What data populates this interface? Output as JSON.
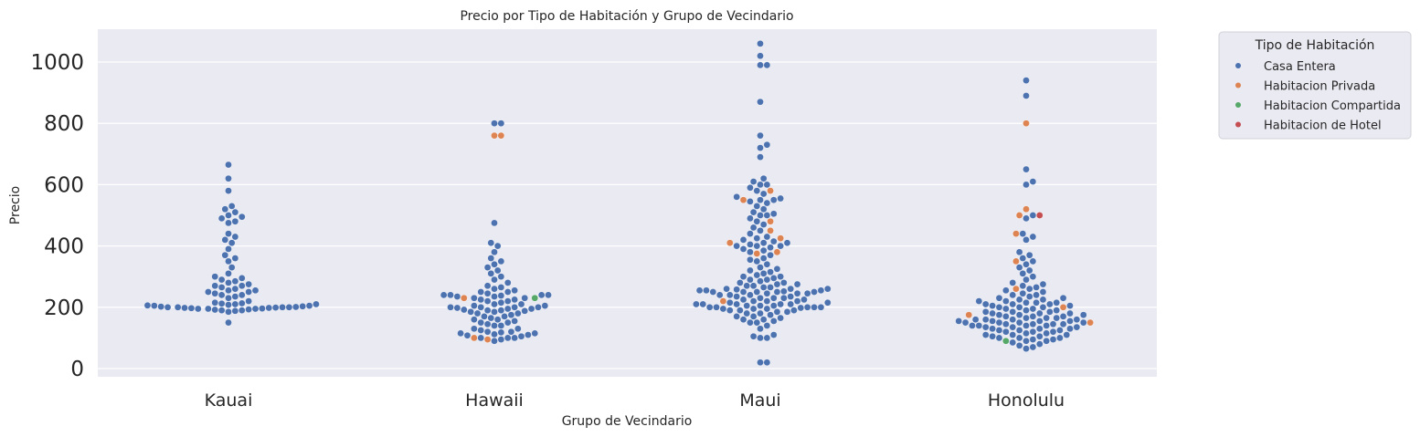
{
  "chart_data": {
    "type": "scatter",
    "subtype": "swarm",
    "title": "Precio por Tipo de Habitación y Grupo de Vecindario",
    "xlabel": "Grupo de Vecindario",
    "ylabel": "Precio",
    "ylim": [
      -30,
      1110
    ],
    "yticks": [
      0,
      200,
      400,
      600,
      800,
      1000
    ],
    "grid": true,
    "legend": {
      "title": "Tipo de Habitación",
      "placement": "outside-top-right",
      "entries": [
        {
          "name": "Casa Entera",
          "color": "#4c72b0"
        },
        {
          "name": "Habitacion Privada",
          "color": "#dd8452"
        },
        {
          "name": "Habitacion Compartida",
          "color": "#55a868"
        },
        {
          "name": "Habitacion de Hotel",
          "color": "#c44e52"
        }
      ]
    },
    "categories": [
      "Kauai",
      "Hawaii",
      "Maui",
      "Honolulu"
    ],
    "series": [
      {
        "name": "Casa Entera",
        "color": "#4c72b0",
        "points": {
          "Kauai": [
            150,
            185,
            188,
            190,
            190,
            192,
            193,
            195,
            195,
            195,
            196,
            197,
            198,
            198,
            199,
            200,
            200,
            200,
            200,
            201,
            202,
            203,
            205,
            205,
            206,
            208,
            210,
            210,
            212,
            213,
            215,
            220,
            230,
            235,
            240,
            240,
            245,
            250,
            250,
            255,
            255,
            260,
            265,
            270,
            270,
            275,
            280,
            285,
            290,
            295,
            300,
            310,
            330,
            350,
            360,
            370,
            390,
            410,
            420,
            430,
            440,
            475,
            480,
            490,
            495,
            500,
            510,
            520,
            530,
            580,
            620,
            665
          ],
          "Hawaii": [
            90,
            95,
            100,
            100,
            100,
            105,
            108,
            110,
            112,
            115,
            115,
            118,
            120,
            120,
            125,
            130,
            130,
            140,
            140,
            145,
            150,
            150,
            155,
            160,
            160,
            165,
            170,
            170,
            175,
            180,
            180,
            185,
            185,
            188,
            190,
            190,
            192,
            195,
            195,
            198,
            200,
            200,
            200,
            200,
            205,
            205,
            210,
            210,
            215,
            220,
            220,
            225,
            225,
            230,
            230,
            235,
            235,
            238,
            240,
            240,
            240,
            240,
            245,
            250,
            250,
            255,
            260,
            265,
            270,
            280,
            290,
            300,
            310,
            320,
            330,
            340,
            350,
            360,
            380,
            400,
            410,
            475,
            800,
            800
          ],
          "Maui": [
            20,
            20,
            100,
            100,
            105,
            110,
            130,
            140,
            150,
            150,
            155,
            160,
            160,
            165,
            170,
            170,
            175,
            180,
            180,
            185,
            185,
            190,
            190,
            190,
            195,
            195,
            195,
            198,
            200,
            200,
            200,
            200,
            200,
            205,
            205,
            205,
            210,
            210,
            210,
            210,
            210,
            215,
            215,
            220,
            220,
            220,
            225,
            225,
            230,
            230,
            230,
            235,
            235,
            240,
            240,
            240,
            245,
            245,
            245,
            250,
            250,
            250,
            250,
            250,
            252,
            255,
            255,
            255,
            258,
            260,
            260,
            260,
            265,
            265,
            270,
            270,
            275,
            275,
            280,
            280,
            285,
            290,
            290,
            295,
            300,
            300,
            305,
            310,
            315,
            320,
            325,
            330,
            340,
            350,
            355,
            360,
            370,
            380,
            385,
            390,
            395,
            400,
            400,
            400,
            405,
            410,
            410,
            415,
            420,
            425,
            430,
            440,
            450,
            460,
            470,
            480,
            490,
            500,
            500,
            505,
            510,
            520,
            530,
            540,
            545,
            550,
            550,
            555,
            560,
            570,
            580,
            590,
            600,
            600,
            610,
            620,
            690,
            720,
            730,
            760,
            870,
            990,
            990,
            1020,
            1060
          ],
          "Honolulu": [
            65,
            70,
            75,
            80,
            85,
            90,
            90,
            95,
            95,
            100,
            100,
            100,
            105,
            105,
            110,
            110,
            110,
            115,
            115,
            120,
            120,
            120,
            125,
            125,
            125,
            130,
            130,
            130,
            135,
            135,
            135,
            140,
            140,
            140,
            140,
            145,
            145,
            145,
            145,
            150,
            150,
            150,
            150,
            155,
            155,
            155,
            155,
            160,
            160,
            160,
            160,
            165,
            165,
            165,
            170,
            170,
            170,
            175,
            175,
            175,
            180,
            180,
            180,
            185,
            185,
            185,
            190,
            190,
            195,
            195,
            200,
            200,
            200,
            205,
            205,
            210,
            210,
            210,
            215,
            215,
            215,
            220,
            220,
            225,
            225,
            230,
            230,
            235,
            240,
            240,
            245,
            250,
            255,
            260,
            265,
            270,
            275,
            280,
            290,
            300,
            310,
            320,
            330,
            340,
            350,
            360,
            370,
            380,
            420,
            430,
            440,
            490,
            500,
            600,
            610,
            650,
            890,
            940
          ]
        }
      },
      {
        "name": "Habitacion Privada",
        "color": "#dd8452",
        "points": {
          "Kauai": [],
          "Hawaii": [
            95,
            100,
            230,
            760,
            760
          ],
          "Maui": [
            220,
            375,
            380,
            410,
            425,
            450,
            480,
            550,
            580
          ],
          "Honolulu": [
            150,
            175,
            200,
            260,
            350,
            440,
            500,
            520,
            800
          ]
        }
      },
      {
        "name": "Habitacion Compartida",
        "color": "#55a868",
        "points": {
          "Kauai": [],
          "Hawaii": [
            230
          ],
          "Maui": [],
          "Honolulu": [
            90
          ]
        }
      },
      {
        "name": "Habitacion de Hotel",
        "color": "#c44e52",
        "points": {
          "Kauai": [],
          "Hawaii": [],
          "Maui": [],
          "Honolulu": [
            500
          ]
        }
      }
    ]
  }
}
